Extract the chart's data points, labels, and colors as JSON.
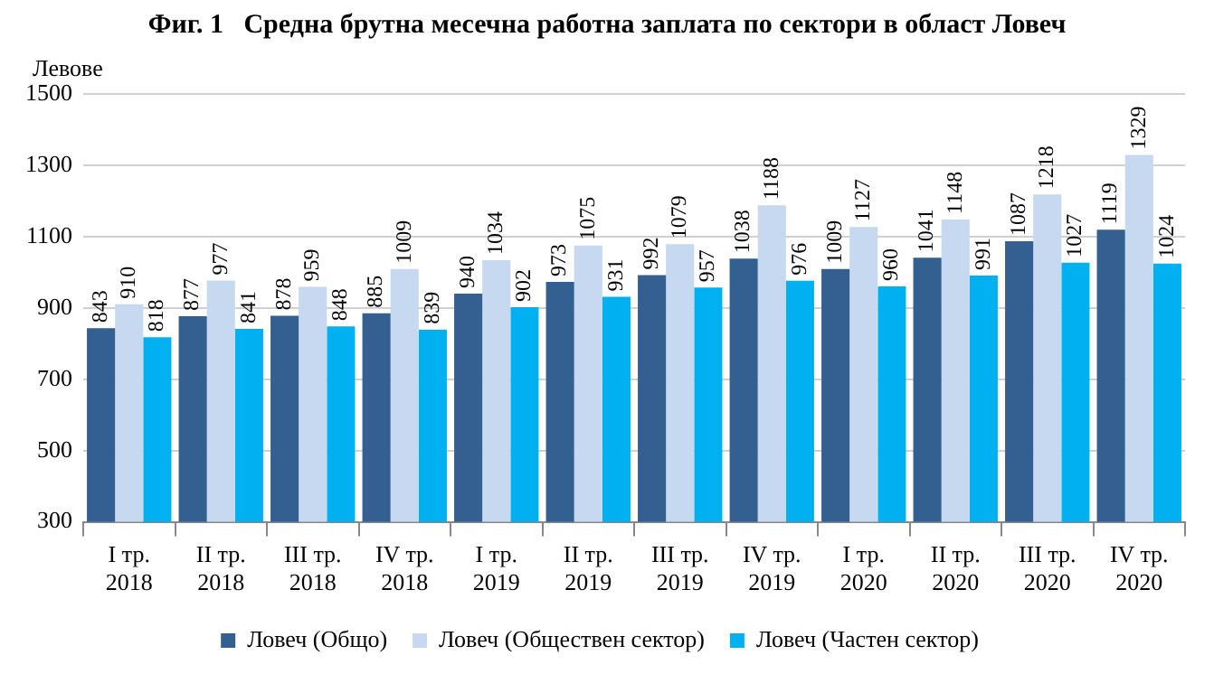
{
  "chart_data": {
    "type": "bar",
    "title": "Фиг. 1   Средна брутна месечна работна заплата по сектори в област Ловеч",
    "ylabel": "Левове",
    "categories": [
      "I тр. 2018",
      "II тр. 2018",
      "III тр. 2018",
      "IV тр. 2018",
      "I тр. 2019",
      "II тр. 2019",
      "III тр. 2019",
      "IV тр. 2019",
      "I тр. 2020",
      "II тр. 2020",
      "III тр. 2020",
      "IV тр. 2020"
    ],
    "series": [
      {
        "name": "Ловеч (Общо)",
        "color": "#335f91",
        "values": [
          843,
          877,
          878,
          885,
          940,
          973,
          992,
          1038,
          1009,
          1041,
          1087,
          1119
        ]
      },
      {
        "name": "Ловеч (Обществен сектор)",
        "color": "#c6d9f1",
        "values": [
          910,
          977,
          959,
          1009,
          1034,
          1075,
          1079,
          1188,
          1127,
          1148,
          1218,
          1329
        ]
      },
      {
        "name": "Ловеч (Частен сектор)",
        "color": "#00b0f0",
        "values": [
          818,
          841,
          848,
          839,
          902,
          931,
          957,
          976,
          960,
          991,
          1027,
          1024
        ]
      }
    ],
    "ylim": [
      300,
      1500
    ],
    "yticks": [
      300,
      500,
      700,
      900,
      1100,
      1300,
      1500
    ],
    "grid": "y",
    "legend": "bottom",
    "data_labels": true
  }
}
